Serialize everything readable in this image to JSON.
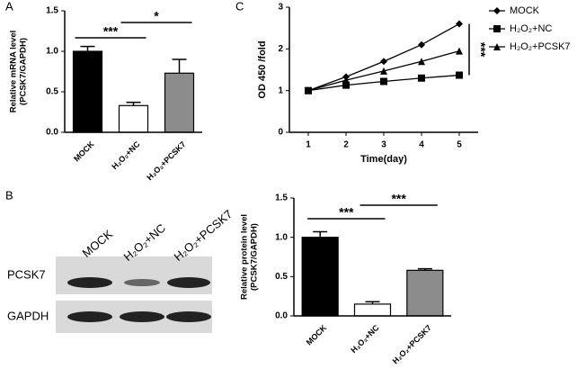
{
  "chart_data": [
    {
      "type": "bar",
      "panel_label": "A",
      "y_label": [
        "Relative mRNA level",
        "(PCSK7/GAPDH)"
      ],
      "categories": [
        "MOCK",
        "H₂O₂+NC",
        "H₂O₂+PCSK7"
      ],
      "values": [
        1.0,
        0.33,
        0.73
      ],
      "errors": [
        0.06,
        0.04,
        0.17
      ],
      "colors": [
        "#000000",
        "#ffffff",
        "#8c8c8c"
      ],
      "ylim": [
        0,
        1.5
      ],
      "yticks": [
        {
          "value": 0,
          "label": "0.0"
        },
        {
          "value": 0.5,
          "label": "0.5"
        },
        {
          "value": 1,
          "label": "1.0"
        },
        {
          "value": 1.5,
          "label": "1.5"
        }
      ],
      "annotations": [
        "***",
        "*"
      ]
    },
    {
      "type": "line",
      "panel_label": "C",
      "x_label": "Time(day)",
      "y_label": [
        "OD 450 /fold"
      ],
      "x": [
        1,
        2,
        3,
        4,
        5
      ],
      "xlim": [
        0.5,
        5.5
      ],
      "xticks": [
        1,
        2,
        3,
        4,
        5
      ],
      "ylim": [
        0,
        3
      ],
      "yticks": [
        0,
        1,
        2,
        3
      ],
      "series": [
        {
          "name": "MOCK",
          "color": "#000000",
          "marker": "diamond",
          "values": [
            1,
            1.33,
            1.7,
            2.1,
            2.6
          ]
        },
        {
          "name": "H₂O₂+NC",
          "color": "#000000",
          "marker": "square",
          "values": [
            1,
            1.13,
            1.22,
            1.3,
            1.37
          ]
        },
        {
          "name": "H₂O₂+PCSK7",
          "color": "#000000",
          "marker": "triangle",
          "values": [
            1,
            1.25,
            1.47,
            1.7,
            1.95
          ]
        }
      ],
      "annotations": [
        "***"
      ]
    },
    {
      "type": "bar",
      "y_label": [
        "Relative protein level",
        "(PCSK7/GAPDH)"
      ],
      "categories": [
        "MOCK",
        "H₂O₂+NC",
        "H₂O₂+PCSK7"
      ],
      "values": [
        1.0,
        0.15,
        0.58
      ],
      "errors": [
        0.07,
        0.03,
        0.02
      ],
      "colors": [
        "#000000",
        "#ffffff",
        "#8c8c8c"
      ],
      "ylim": [
        0,
        1.5
      ],
      "yticks": [
        {
          "value": 0,
          "label": "0.0"
        },
        {
          "value": 0.5,
          "label": "0.5"
        },
        {
          "value": 1,
          "label": "1.0"
        },
        {
          "value": 1.5,
          "label": "1.5"
        }
      ],
      "annotations": [
        "***",
        "***"
      ]
    }
  ],
  "blot": {
    "panel_label": "B",
    "lanes": [
      "MOCK",
      "H₂O₂+NC",
      "H₂O₂+PCSK7"
    ],
    "rows": [
      "PCSK7",
      "GAPDH"
    ]
  }
}
